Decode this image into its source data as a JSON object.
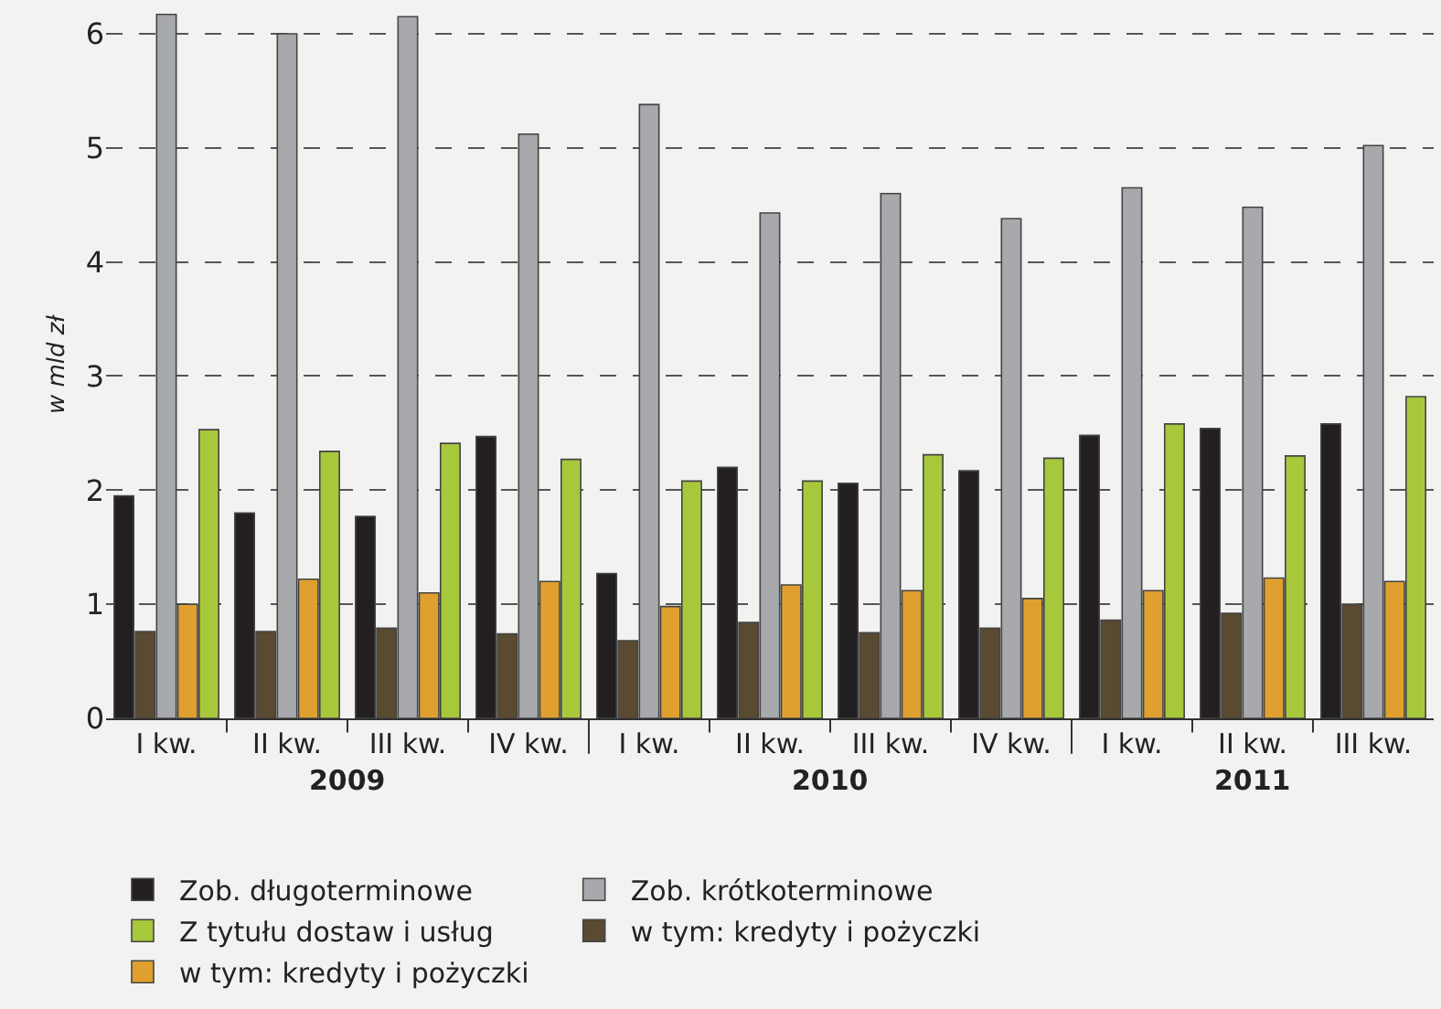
{
  "chart_data": {
    "type": "bar",
    "ylabel": "w mld zł",
    "categories": [
      "I kw.",
      "II kw.",
      "III kw.",
      "IV kw.",
      "I kw.",
      "II kw.",
      "III kw.",
      "IV kw.",
      "I kw.",
      "II kw.",
      "III kw."
    ],
    "series": [
      {
        "name": "Zob. długoterminowe",
        "color": "#231f20",
        "values": [
          1.95,
          1.8,
          1.77,
          2.47,
          1.27,
          2.2,
          2.06,
          2.17,
          2.48,
          2.54,
          2.58
        ]
      },
      {
        "name": "w tym: kredyty i pożyczki",
        "color": "#5a4a32",
        "values": [
          0.76,
          0.76,
          0.79,
          0.74,
          0.68,
          0.84,
          0.75,
          0.79,
          0.86,
          0.92,
          1.0
        ]
      },
      {
        "name": "Zob. krótkoterminowe",
        "color": "#a7a9ac",
        "values": [
          6.17,
          6.0,
          6.15,
          5.12,
          5.38,
          4.43,
          4.6,
          4.38,
          4.65,
          4.48,
          5.02
        ]
      },
      {
        "name": "w tym: kredyty i pożyczki",
        "color": "#e0a030",
        "values": [
          1.0,
          1.22,
          1.1,
          1.2,
          0.98,
          1.17,
          1.12,
          1.05,
          1.12,
          1.23,
          1.2
        ]
      },
      {
        "name": "Z tytułu dostaw i usług",
        "color": "#a8c83c",
        "values": [
          2.53,
          2.34,
          2.41,
          2.27,
          2.08,
          2.08,
          2.31,
          2.28,
          2.58,
          2.3,
          2.82
        ]
      }
    ],
    "ylim": [
      0,
      6.2
    ],
    "yticks": [
      0,
      1,
      2,
      3,
      4,
      5,
      6
    ],
    "grid": "y",
    "legend": "bottom",
    "annotations": [
      "2009",
      "2010",
      "2011"
    ]
  }
}
